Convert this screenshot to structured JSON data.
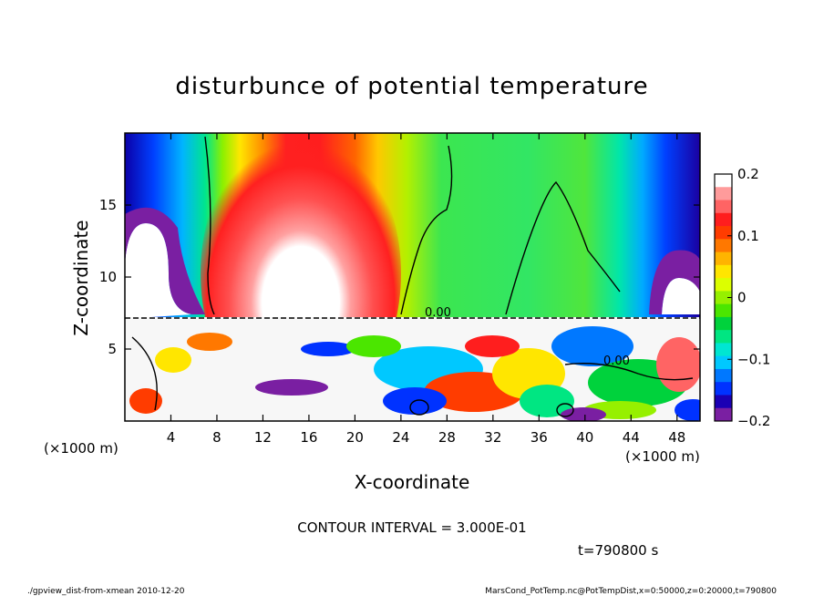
{
  "chart_data": {
    "type": "heatmap",
    "title": "disturbunce of potential temperature",
    "xlabel": "X-coordinate",
    "ylabel": "Z-coordinate",
    "xunit": "(×1000 m)",
    "yunit": "(×1000 m)",
    "xlim": [
      0,
      50
    ],
    "ylim": [
      0,
      20
    ],
    "xticks": [
      4,
      8,
      12,
      16,
      20,
      24,
      28,
      32,
      36,
      40,
      44,
      48
    ],
    "yticks": [
      5,
      10,
      15
    ],
    "colorbar": {
      "min": -0.2,
      "max": 0.2,
      "ticks": [
        0.2,
        0.1,
        0,
        -0.1,
        -0.2
      ],
      "tick_labels": [
        "0.2",
        "0.1",
        "0",
        "−0.1",
        "−0.2"
      ],
      "colors": [
        "#7a1fa2",
        "#1a00b4",
        "#0032ff",
        "#0078ff",
        "#00c8ff",
        "#00e6d2",
        "#00e682",
        "#00d23c",
        "#4be600",
        "#96f000",
        "#dcff00",
        "#ffe600",
        "#ffb400",
        "#ff7800",
        "#ff3c00",
        "#ff1e1e",
        "#ff6464",
        "#ff9b9b",
        "#ffffff"
      ]
    },
    "contour_labels": [
      "0.00",
      "0.00"
    ],
    "contour_interval_label": "CONTOUR INTERVAL = 3.000E-01",
    "time_label": "t=790800 s"
  },
  "footer": {
    "left": "./gpview_dist-from-xmean  2010-12-20",
    "right": "MarsCond_PotTemp.nc@PotTempDist,x=0:50000,z=0:20000,t=790800"
  }
}
